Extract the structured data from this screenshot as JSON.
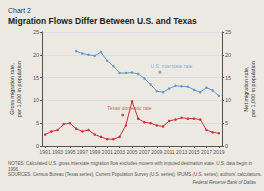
{
  "chart_data": {
    "type": "line",
    "subtitle": "Chart 2",
    "title": "Migration Flows Differ Between U.S. and Texas",
    "notes": "NOTES: Calculated U.S. gross interstate migration flow excludes movers with imputed destination state. U.S. data begin in 1996.\nSOURCES: Census Bureau (Texas series); Current Population Survey (U.S. series); IPUMS (U.S. series); authors' calculations.",
    "footer": "Federal Reserve Bank of Dallas",
    "background_color": "#ece9e3",
    "xlim": [
      1990.5,
      2019.5
    ],
    "xticks": [
      1991,
      1993,
      1995,
      1997,
      1999,
      2001,
      2003,
      2005,
      2007,
      2009,
      2011,
      2013,
      2015,
      2017,
      2019
    ],
    "ylabel": "Gross migration rate,\nper 1,000 in population",
    "y2label": "Net migration rate,\nper 1,000 in population",
    "ylim": [
      0,
      25
    ],
    "yticks": [
      0,
      5,
      10,
      15,
      20,
      25
    ],
    "y2lim": [
      0,
      25
    ],
    "y2ticks": [
      0,
      5,
      10,
      15,
      20,
      25
    ],
    "grid": true,
    "marker": "circle",
    "series": [
      {
        "axis": "y",
        "color": "#cc3333",
        "x": [
          1991,
          1992,
          1993,
          1994,
          1995,
          1996,
          1997,
          1998,
          1999,
          2000,
          2001,
          2002,
          2003,
          2004,
          2005,
          2006,
          2007,
          2008,
          2009,
          2010,
          2011,
          2012,
          2013,
          2014,
          2015,
          2016,
          2017,
          2018,
          2019
        ],
        "values": [
          2.5,
          3.2,
          3.5,
          4.8,
          5.0,
          3.8,
          3.2,
          3.5,
          2.5,
          2.0,
          1.5,
          1.5,
          2.0,
          4.5,
          9.8,
          6.0,
          5.2,
          5.0,
          4.5,
          4.3,
          5.5,
          5.8,
          6.2,
          6.0,
          6.0,
          5.8,
          3.5,
          3.0,
          2.8
        ]
      },
      {
        "axis": "y2",
        "color": "#6699cc",
        "x": [
          1996,
          1997,
          1998,
          1999,
          2000,
          2001,
          2002,
          2003,
          2004,
          2005,
          2006,
          2007,
          2008,
          2009,
          2010,
          2011,
          2012,
          2013,
          2014,
          2015,
          2016,
          2017,
          2018,
          2019
        ],
        "values": [
          20.8,
          20.3,
          20.0,
          19.8,
          20.6,
          18.7,
          17.5,
          16.0,
          16.0,
          16.1,
          15.8,
          14.8,
          13.5,
          12.0,
          11.8,
          12.6,
          13.2,
          13.1,
          13.0,
          12.3,
          11.8,
          12.8,
          12.2,
          11.0
        ]
      }
    ],
    "annotations": [
      {
        "text": "U.S. interstate rate",
        "x": 2008.0,
        "y": 17.0,
        "axis": "y2",
        "color": "#6699cc",
        "point": [
          2009.5,
          16.2
        ]
      },
      {
        "text": "Texas domestic rate",
        "x": 2001.0,
        "y": 7.8,
        "axis": "y",
        "color": "#cc3333",
        "point": [
          2003.5,
          6.8
        ]
      }
    ]
  }
}
